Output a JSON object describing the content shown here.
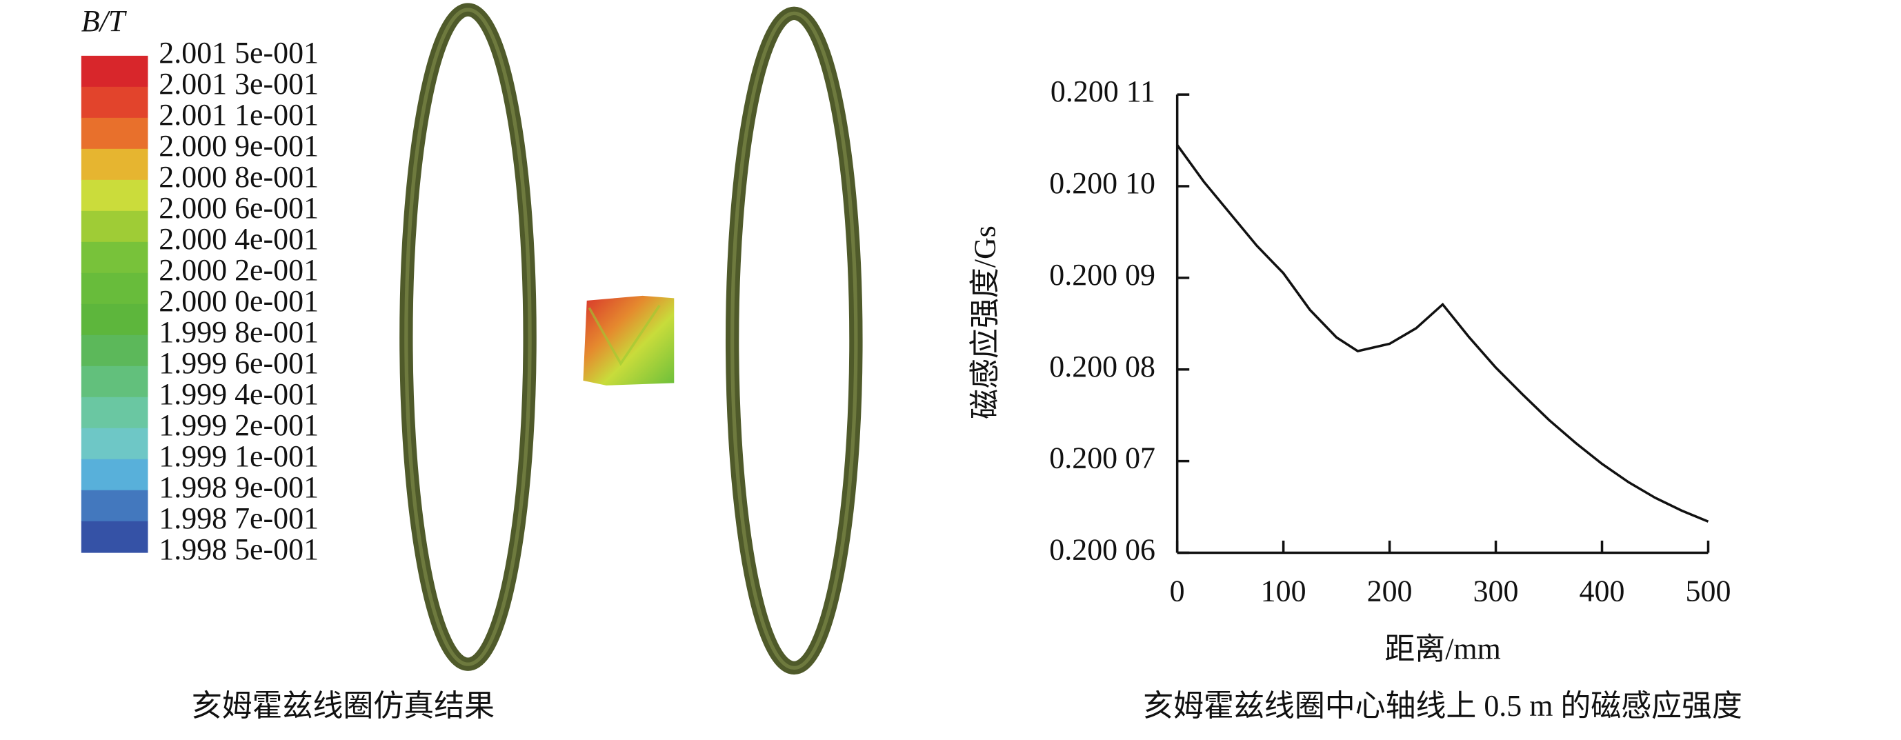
{
  "simulation": {
    "legend_title": "B/T",
    "legend_labels": [
      "2.001 5e-001",
      "2.001 3e-001",
      "2.001 1e-001",
      "2.000 9e-001",
      "2.000 8e-001",
      "2.000 6e-001",
      "2.000 4e-001",
      "2.000 2e-001",
      "2.000 0e-001",
      "1.999 8e-001",
      "1.999 6e-001",
      "1.999 4e-001",
      "1.999 2e-001",
      "1.999 1e-001",
      "1.998 9e-001",
      "1.998 7e-001",
      "1.998 5e-001"
    ],
    "legend_colors": [
      "#d8262b",
      "#e2442c",
      "#e8702c",
      "#e6b530",
      "#cbdc3b",
      "#9fcc36",
      "#78c23a",
      "#68bc3b",
      "#5db63c",
      "#5cb85a",
      "#62c07c",
      "#6ac7a2",
      "#6ec7c6",
      "#58b0da",
      "#4378be",
      "#3552a6"
    ],
    "caption": "亥姆霍兹线圈仿真结果"
  },
  "chart_data": {
    "type": "line",
    "caption": "亥姆霍兹线圈中心轴线上 0.5 m 的磁感应强度",
    "x_label": "距离/mm",
    "y_label": "磁感应强度/Gs",
    "color": "#111111",
    "x": [
      0,
      25,
      50,
      75,
      100,
      125,
      150,
      170,
      200,
      225,
      250,
      275,
      300,
      325,
      350,
      375,
      400,
      425,
      450,
      475,
      500
    ],
    "values": [
      0.2001045,
      0.2001005,
      0.200097,
      0.2000935,
      0.2000905,
      0.2000865,
      0.2000835,
      0.200082,
      0.2000828,
      0.2000845,
      0.2000871,
      0.2000835,
      0.2000802,
      0.2000773,
      0.2000745,
      0.200072,
      0.2000697,
      0.2000677,
      0.200066,
      0.2000646,
      0.2000634
    ],
    "xlim": [
      0,
      500
    ],
    "xticks": [
      0,
      100,
      200,
      300,
      400,
      500
    ],
    "ylim": [
      0.20006,
      0.20011
    ],
    "yticks": [
      {
        "value": 0.20006,
        "label": "0.200 06"
      },
      {
        "value": 0.20007,
        "label": "0.200 07"
      },
      {
        "value": 0.20008,
        "label": "0.200 08"
      },
      {
        "value": 0.20009,
        "label": "0.200 09"
      },
      {
        "value": 0.2001,
        "label": "0.200 10"
      },
      {
        "value": 0.20011,
        "label": "0.200 11"
      }
    ]
  }
}
